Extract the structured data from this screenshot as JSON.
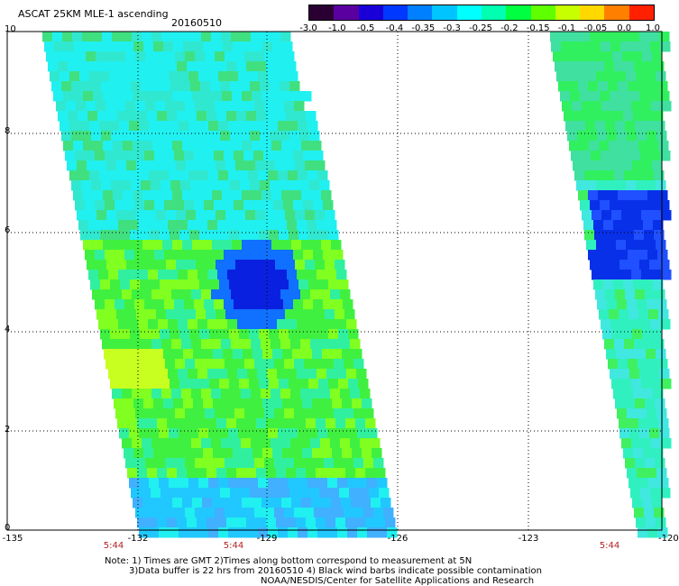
{
  "header": {
    "title": "ASCAT 25KM MLE-1 ascending",
    "date": "20160510"
  },
  "colorbar": {
    "labels": [
      "-3.0",
      "-1.0",
      "-0.5",
      "-0.4",
      "-0.35",
      "-0.3",
      "-0.25",
      "-0.2",
      "-0.15",
      "-0.1",
      "-0.05",
      "0.0",
      "1.0"
    ],
    "colors": [
      "#2a0033",
      "#5a00a0",
      "#1a00d8",
      "#0038ff",
      "#0080ff",
      "#00c4ff",
      "#00ffff",
      "#00ffb0",
      "#00ff40",
      "#60ff00",
      "#c8ff00",
      "#ffd800",
      "#ff8000",
      "#ff2000"
    ]
  },
  "axes": {
    "x_ticks": [
      "-135",
      "-132",
      "-129",
      "-126",
      "-123",
      "-120"
    ],
    "y_ticks": [
      "0",
      "2",
      "4",
      "6",
      "8",
      "10"
    ],
    "times": [
      "5:44",
      "5:44",
      "5:44"
    ]
  },
  "notes": {
    "line1": "Note: 1) Times are GMT 2)Times along bottom correspond to measurement at 5N",
    "line2": "3)Data buffer is 22 hrs from 20160510 4) Black wind barbs indicate possible contamination",
    "line3": "NOAA/NESDIS/Center for Satellite Applications and Research"
  }
}
